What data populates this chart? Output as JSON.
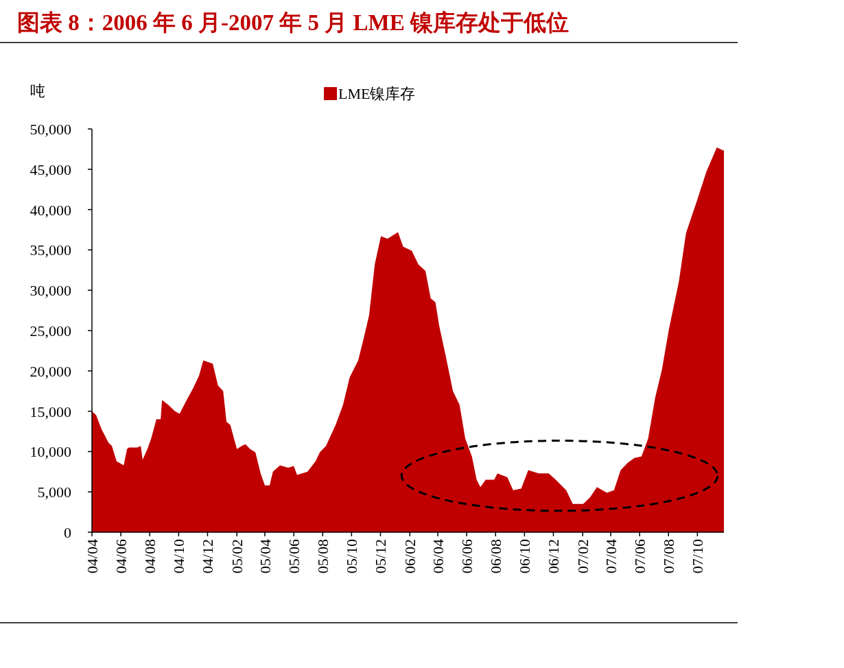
{
  "chart_data": {
    "type": "area",
    "title": "图表 8：2006 年 6 月-2007 年 5 月 LME 镍库存处于低位",
    "ylabel": "吨",
    "legend": "top",
    "grid": false,
    "x": [
      "2004-04-01",
      "2004-04-10",
      "2004-04-21",
      "2004-05-06",
      "2004-05-13",
      "2004-05-23",
      "2004-06-07",
      "2004-06-14",
      "2004-06-18",
      "2004-07-06",
      "2004-07-13",
      "2004-07-17",
      "2004-07-27",
      "2004-08-04",
      "2004-08-15",
      "2004-08-24",
      "2004-08-27",
      "2004-09-09",
      "2004-09-23",
      "2004-10-03",
      "2004-10-18",
      "2004-11-01",
      "2004-11-13",
      "2004-11-22",
      "2004-12-12",
      "2004-12-23",
      "2005-01-03",
      "2005-01-10",
      "2005-01-18",
      "2005-02-01",
      "2005-02-11",
      "2005-02-19",
      "2005-03-01",
      "2005-03-12",
      "2005-03-23",
      "2005-04-01",
      "2005-04-11",
      "2005-04-18",
      "2005-05-03",
      "2005-05-20",
      "2005-06-01",
      "2005-06-08",
      "2005-06-30",
      "2005-07-17",
      "2005-07-26",
      "2005-08-08",
      "2005-08-29",
      "2005-09-13",
      "2005-09-27",
      "2005-10-15",
      "2005-10-26",
      "2005-11-07",
      "2005-11-19",
      "2005-12-02",
      "2005-12-16",
      "2006-01-07",
      "2006-01-18",
      "2006-02-05",
      "2006-02-19",
      "2006-03-06",
      "2006-03-17",
      "2006-03-27",
      "2006-04-04",
      "2006-04-18",
      "2006-05-03",
      "2006-05-17",
      "2006-05-29",
      "2006-06-12",
      "2006-06-22",
      "2006-06-30",
      "2006-07-11",
      "2006-07-29",
      "2006-08-05",
      "2006-08-26",
      "2006-09-07",
      "2006-09-24",
      "2006-10-09",
      "2006-10-31",
      "2006-11-21",
      "2006-12-06",
      "2006-12-28",
      "2007-01-11",
      "2007-02-02",
      "2007-02-16",
      "2007-03-03",
      "2007-03-24",
      "2007-04-08",
      "2007-04-22",
      "2007-05-07",
      "2007-05-21",
      "2007-06-05",
      "2007-06-19",
      "2007-07-04",
      "2007-07-18",
      "2007-08-02",
      "2007-08-23",
      "2007-09-07",
      "2007-09-29",
      "2007-10-20",
      "2007-11-11",
      "2007-11-26"
    ],
    "series": [
      {
        "name": "LME镍库存",
        "color": "#c00000",
        "values": [
          15000,
          14500,
          12800,
          11100,
          10700,
          8800,
          8300,
          10300,
          10500,
          10500,
          10700,
          9000,
          10300,
          11600,
          14000,
          14000,
          16400,
          15800,
          15000,
          14700,
          16400,
          17900,
          19400,
          21300,
          20900,
          18200,
          17500,
          13700,
          13300,
          10300,
          10700,
          10900,
          10300,
          9900,
          7300,
          5800,
          5800,
          7500,
          8300,
          8000,
          8200,
          7100,
          7500,
          8800,
          9900,
          10700,
          13400,
          15800,
          19200,
          21300,
          23900,
          26900,
          33200,
          36700,
          36400,
          37200,
          35400,
          34900,
          33200,
          32400,
          29000,
          28500,
          25600,
          21800,
          17500,
          15800,
          11600,
          9400,
          6500,
          5600,
          6500,
          6500,
          7300,
          6800,
          5200,
          5400,
          7700,
          7300,
          7300,
          6500,
          5200,
          3500,
          3500,
          4300,
          5600,
          4900,
          5200,
          7700,
          8600,
          9200,
          9400,
          11600,
          16700,
          20100,
          25200,
          31100,
          37100,
          40900,
          44700,
          47700,
          47300
        ]
      }
    ],
    "xlim": [
      "2004-04-01",
      "2007-11-26"
    ],
    "xticks": [
      {
        "value": "2004-04-01",
        "label": "04/04"
      },
      {
        "value": "2004-06-01",
        "label": "04/06"
      },
      {
        "value": "2004-08-01",
        "label": "04/08"
      },
      {
        "value": "2004-10-01",
        "label": "04/10"
      },
      {
        "value": "2004-12-01",
        "label": "04/12"
      },
      {
        "value": "2005-02-01",
        "label": "05/02"
      },
      {
        "value": "2005-04-01",
        "label": "05/04"
      },
      {
        "value": "2005-06-01",
        "label": "05/06"
      },
      {
        "value": "2005-08-01",
        "label": "05/08"
      },
      {
        "value": "2005-10-01",
        "label": "05/10"
      },
      {
        "value": "2005-12-01",
        "label": "05/12"
      },
      {
        "value": "2006-02-01",
        "label": "06/02"
      },
      {
        "value": "2006-04-01",
        "label": "06/04"
      },
      {
        "value": "2006-06-01",
        "label": "06/06"
      },
      {
        "value": "2006-08-01",
        "label": "06/08"
      },
      {
        "value": "2006-10-01",
        "label": "06/10"
      },
      {
        "value": "2006-12-01",
        "label": "06/12"
      },
      {
        "value": "2007-02-01",
        "label": "07/02"
      },
      {
        "value": "2007-04-01",
        "label": "07/04"
      },
      {
        "value": "2007-06-01",
        "label": "07/06"
      },
      {
        "value": "2007-08-01",
        "label": "07/08"
      },
      {
        "value": "2007-10-01",
        "label": "07/10"
      }
    ],
    "ylim": [
      0,
      50000
    ],
    "yticks": [
      0,
      {
        "value": 5000,
        "label": "5,000"
      },
      {
        "value": 10000,
        "label": "10,000"
      },
      {
        "value": 15000,
        "label": "15,000"
      },
      {
        "value": 20000,
        "label": "20,000"
      },
      {
        "value": 25000,
        "label": "25,000"
      },
      {
        "value": 30000,
        "label": "30,000"
      },
      {
        "value": 35000,
        "label": "35,000"
      },
      {
        "value": 40000,
        "label": "40,000"
      },
      {
        "value": 45000,
        "label": "45,000"
      },
      {
        "value": 50000,
        "label": "50,000"
      }
    ]
  }
}
